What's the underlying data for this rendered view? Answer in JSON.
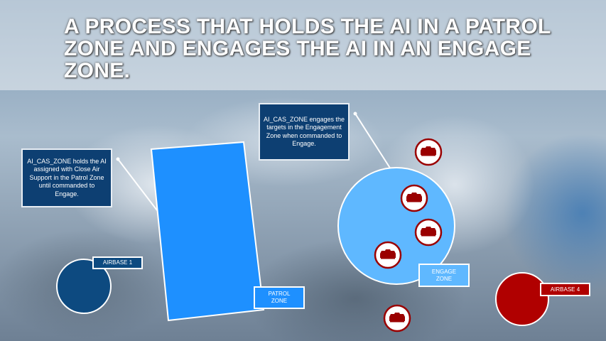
{
  "title": "A PROCESS THAT HOLDS THE AI IN A PATROL ZONE AND ENGAGES THE AI IN AN ENGAGE ZONE.",
  "callouts": {
    "patrol": "AI_CAS_ZONE holds the AI assigned with Close Air Support in the Patrol Zone until commanded to Engage.",
    "engage": "AI_CAS_ZONE engages the targets in the Engagement Zone when commanded to Engage."
  },
  "labels": {
    "airbase1": "AIRBASE 1",
    "airbase4": "AIRBASE 4",
    "patrol_zone": "PATROL ZONE",
    "engage_zone": "ENGAGE ZONE"
  },
  "colors": {
    "patrol_zone": "#1e90ff",
    "engage_zone": "#5fb8ff",
    "friendly": "#0d4a80",
    "enemy": "#b00000",
    "callout_bg": "#0d3f72"
  },
  "icons": {
    "target": "tank-icon"
  }
}
